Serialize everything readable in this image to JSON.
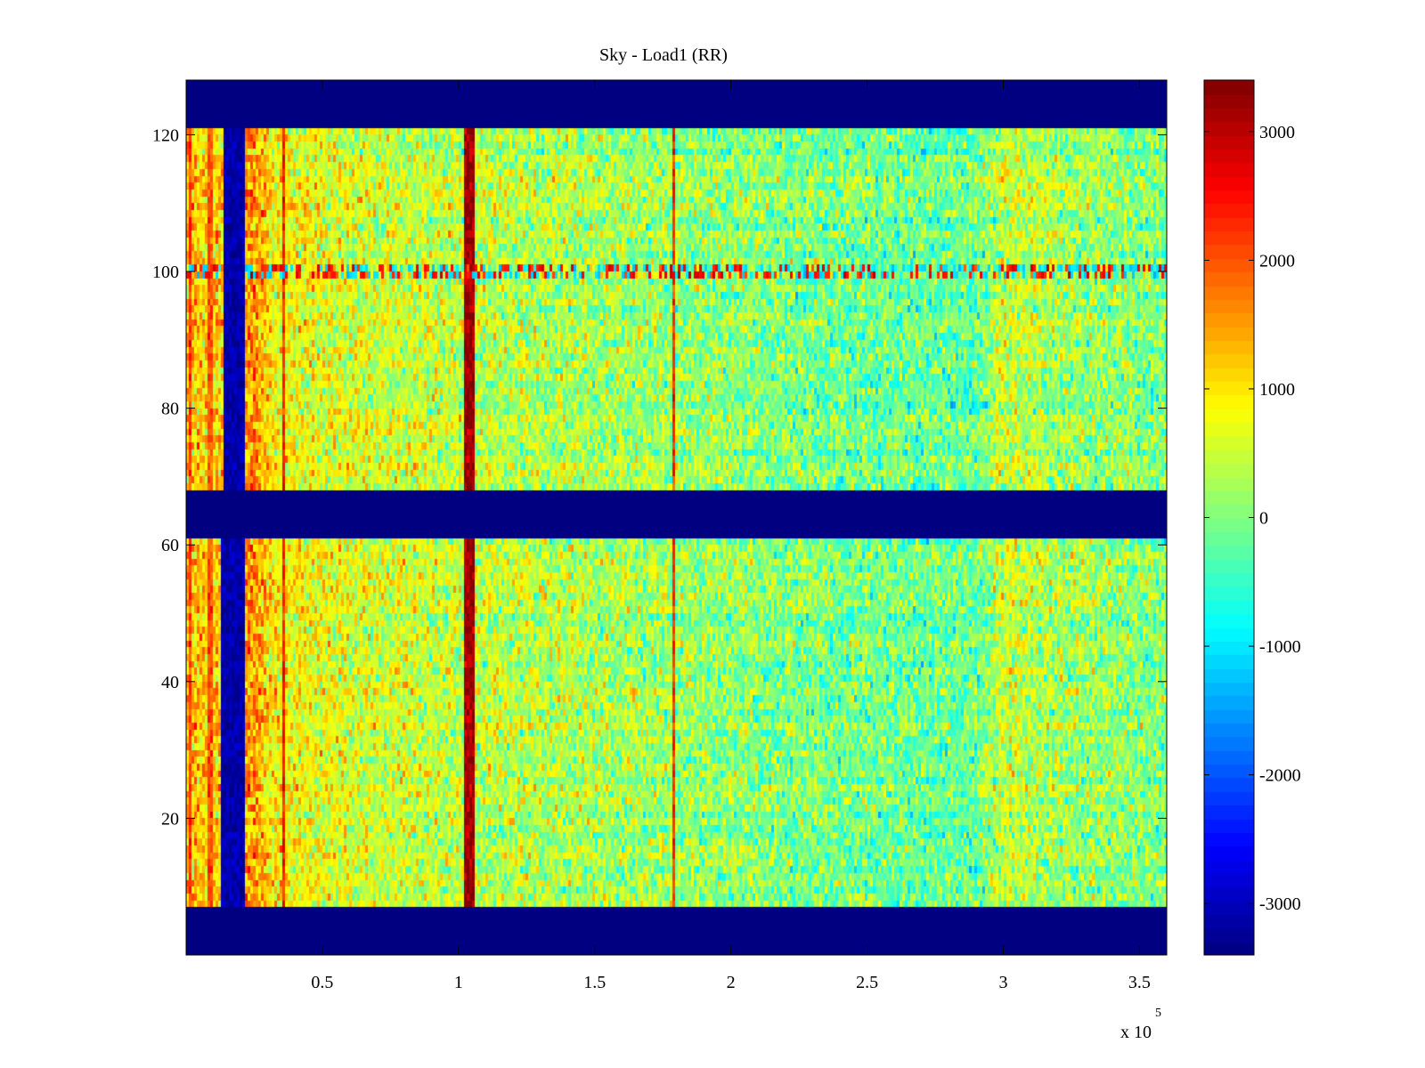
{
  "chart_data": {
    "type": "heatmap",
    "title": "Sky - Load1 (RR)",
    "xlabel": "",
    "ylabel": "",
    "x_exponent_label": "x 10",
    "x_exponent": "5",
    "xlim": [
      0,
      360000
    ],
    "ylim": [
      0,
      128
    ],
    "x_ticks": [
      {
        "value": 50000,
        "label": "0.5"
      },
      {
        "value": 100000,
        "label": "1"
      },
      {
        "value": 150000,
        "label": "1.5"
      },
      {
        "value": 200000,
        "label": "2"
      },
      {
        "value": 250000,
        "label": "2.5"
      },
      {
        "value": 300000,
        "label": "3"
      },
      {
        "value": 350000,
        "label": "3.5"
      }
    ],
    "y_ticks": [
      {
        "value": 20,
        "label": "20"
      },
      {
        "value": 40,
        "label": "40"
      },
      {
        "value": 60,
        "label": "60"
      },
      {
        "value": 80,
        "label": "80"
      },
      {
        "value": 100,
        "label": "100"
      },
      {
        "value": 120,
        "label": "120"
      }
    ],
    "colormap": "jet",
    "clim": [
      -3400,
      3400
    ],
    "colorbar_ticks": [
      {
        "value": 3000,
        "label": "3000"
      },
      {
        "value": 2000,
        "label": "2000"
      },
      {
        "value": 1000,
        "label": "1000"
      },
      {
        "value": 0,
        "label": "0"
      },
      {
        "value": -1000,
        "label": "-1000"
      },
      {
        "value": -2000,
        "label": "-2000"
      },
      {
        "value": -3000,
        "label": "-3000"
      }
    ],
    "masked_row_bands": [
      [
        0,
        7
      ],
      [
        61,
        68
      ],
      [
        121,
        128
      ]
    ],
    "masked_column_bands": [
      {
        "x": [
          13000,
          22000
        ],
        "y": [
          7,
          61
        ]
      },
      {
        "x": [
          14000,
          21500
        ],
        "y": [
          68,
          121
        ]
      }
    ],
    "background_by_x": [
      {
        "x": 0,
        "value": 1300
      },
      {
        "x": 10000,
        "value": 1100
      },
      {
        "x": 25000,
        "value": 1600
      },
      {
        "x": 32000,
        "value": 900
      },
      {
        "x": 60000,
        "value": 600
      },
      {
        "x": 100000,
        "value": 450
      },
      {
        "x": 150000,
        "value": 300
      },
      {
        "x": 200000,
        "value": 100
      },
      {
        "x": 250000,
        "value": -100
      },
      {
        "x": 290000,
        "value": -150
      },
      {
        "x": 300000,
        "value": 500
      },
      {
        "x": 320000,
        "value": 250
      },
      {
        "x": 360000,
        "value": 0
      }
    ],
    "bright_columns": [
      {
        "x": 1500,
        "value": 2200
      },
      {
        "x": 9000,
        "value": 2000
      },
      {
        "x": 36000,
        "value": 2400
      },
      {
        "x": 104000,
        "value": 3200
      },
      {
        "x": 179000,
        "value": 2300
      }
    ],
    "bright_row": {
      "y": 100,
      "value": 2500
    },
    "noise_amplitude": 700
  }
}
